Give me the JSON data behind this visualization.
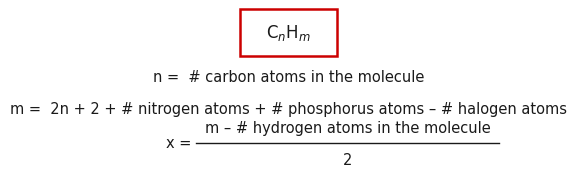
{
  "bg_color": "#ffffff",
  "box_text": "C$_n$H$_m$",
  "box_color": "#cc0000",
  "text_color": "#1a1a1a",
  "line1": "n =  # carbon atoms in the molecule",
  "line2": "m =  2n + 2 + # nitrogen atoms + # phosphorus atoms – # halogen atoms",
  "numerator": "m – # hydrogen atoms in the molecule",
  "denominator": "2",
  "font_size": 10.5,
  "font_size_box": 12
}
